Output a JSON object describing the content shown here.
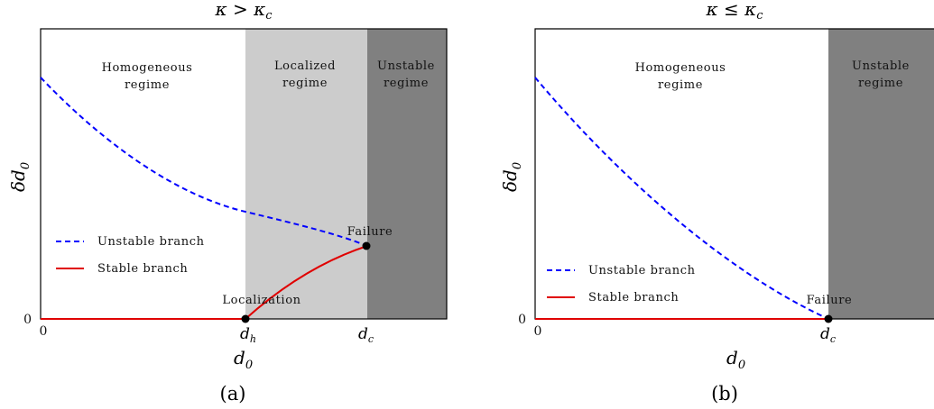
{
  "panels": [
    {
      "id": "a",
      "title": "κ > κ",
      "title_sub": "c",
      "caption": "(a)",
      "xlabel": "d",
      "xlabel_sub": "0",
      "ylabel": "δd",
      "ylabel_sub": "0",
      "tick_x0": "0",
      "tick_y0": "0",
      "tick_h": "d",
      "tick_h_sub": "h",
      "tick_c": "d",
      "tick_c_sub": "c",
      "regions": [
        {
          "lines": [
            "Homogeneous",
            "regime"
          ],
          "fill": "#ffffff"
        },
        {
          "lines": [
            "Localized",
            "regime"
          ],
          "fill": "#cccccc"
        },
        {
          "lines": [
            "Unstable",
            "regime"
          ],
          "fill": "#808080"
        }
      ],
      "legend": [
        {
          "label": "Unstable branch",
          "color": "#0000ff",
          "style": "dashed"
        },
        {
          "label": "Stable branch",
          "color": "#e00000",
          "style": "solid"
        }
      ],
      "annotations": [
        "Localization",
        "Failure"
      ]
    },
    {
      "id": "b",
      "title": "κ ≤ κ",
      "title_sub": "c",
      "caption": "(b)",
      "xlabel": "d",
      "xlabel_sub": "0",
      "ylabel": "δd",
      "ylabel_sub": "0",
      "tick_x0": "0",
      "tick_y0": "0",
      "tick_c": "d",
      "tick_c_sub": "c",
      "regions": [
        {
          "lines": [
            "Homogeneous",
            "regime"
          ],
          "fill": "#ffffff"
        },
        {
          "lines": [
            "Unstable",
            "regime"
          ],
          "fill": "#808080"
        }
      ],
      "legend": [
        {
          "label": "Unstable branch",
          "color": "#0000ff",
          "style": "dashed"
        },
        {
          "label": "Stable branch",
          "color": "#e00000",
          "style": "solid"
        }
      ],
      "annotations": [
        "Failure"
      ]
    }
  ]
}
